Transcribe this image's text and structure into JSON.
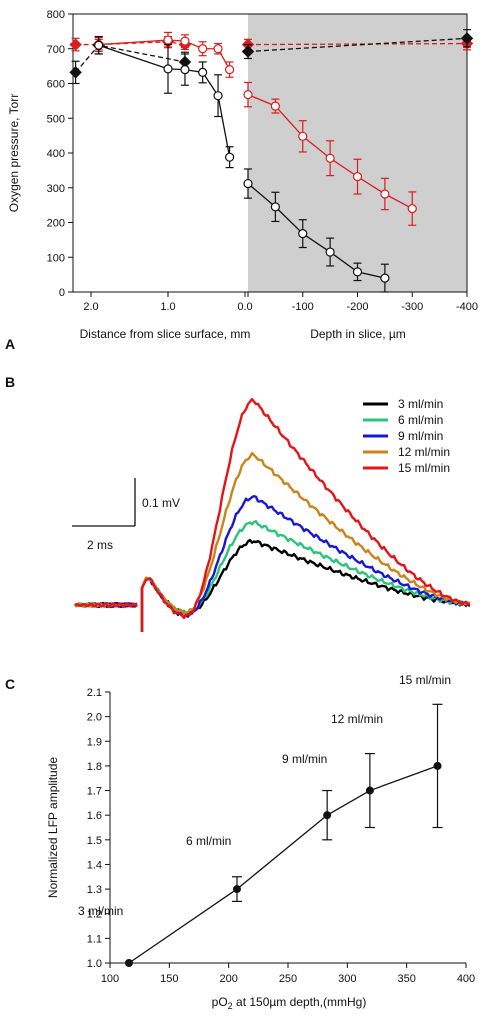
{
  "panels": {
    "a": "A",
    "b": "B",
    "c": "C"
  },
  "chart_data": [
    {
      "panel": "A",
      "type": "line",
      "ylabel": "Oxygen pressure, Torr",
      "ylim": [
        0,
        800
      ],
      "yticks": [
        "0",
        "100",
        "200",
        "300",
        "400",
        "500",
        "600",
        "700",
        "800"
      ],
      "left_axis": {
        "xlabel": "Distance from slice surface, mm",
        "ticks": [
          {
            "v": 2.0,
            "t": "2.0"
          },
          {
            "v": 1.0,
            "t": "1.0"
          },
          {
            "v": 0.0,
            "t": "0.0"
          }
        ],
        "series": [
          {
            "color": "#d81e1e",
            "marker": "diamond",
            "dashed": true,
            "x": [
              2.2,
              1.9,
              1.0,
              0.78
            ],
            "y": [
              712,
              712,
              720,
              712
            ],
            "err": [
              18,
              15,
              15,
              14
            ]
          },
          {
            "color": "#111111",
            "marker": "diamond",
            "dashed": true,
            "x": [
              2.2,
              1.9,
              0.78
            ],
            "y": [
              632,
              710,
              662
            ],
            "err": [
              32,
              25,
              28
            ]
          },
          {
            "color": "#d81e1e",
            "marker": "circle",
            "dashed": false,
            "x": [
              1.9,
              1.0,
              0.78,
              0.55,
              0.35,
              0.2
            ],
            "y": [
              712,
              725,
              722,
              700,
              700,
              640
            ],
            "err": [
              20,
              22,
              18,
              20,
              15,
              22
            ]
          },
          {
            "color": "#111111",
            "marker": "circle",
            "dashed": false,
            "x": [
              1.9,
              1.0,
              0.78,
              0.55,
              0.35,
              0.2
            ],
            "y": [
              710,
              642,
              640,
              632,
              565,
              388
            ],
            "err": [
              25,
              70,
              45,
              30,
              60,
              30
            ]
          }
        ]
      },
      "right_axis": {
        "xlabel": "Depth in slice, µm",
        "ticks": [
          {
            "v": 0,
            "t": "0"
          },
          {
            "v": -100,
            "t": "-100"
          },
          {
            "v": -200,
            "t": "-200"
          },
          {
            "v": -300,
            "t": "-300"
          },
          {
            "v": -400,
            "t": "-400"
          }
        ],
        "shaded": true,
        "series": [
          {
            "color": "#d81e1e",
            "marker": "diamond",
            "dashed": true,
            "x": [
              0,
              -400
            ],
            "y": [
              712,
              715
            ],
            "err": [
              15,
              18
            ]
          },
          {
            "color": "#111111",
            "marker": "diamond",
            "dashed": true,
            "x": [
              0,
              -400
            ],
            "y": [
              692,
              730
            ],
            "err": [
              20,
              25
            ]
          },
          {
            "color": "#d81e1e",
            "marker": "circle",
            "dashed": false,
            "x": [
              0,
              -50,
              -100,
              -150,
              -200,
              -250,
              -300
            ],
            "y": [
              568,
              535,
              448,
              385,
              332,
              282,
              240
            ],
            "err": [
              35,
              20,
              45,
              50,
              50,
              45,
              48
            ]
          },
          {
            "color": "#111111",
            "marker": "circle",
            "dashed": false,
            "x": [
              0,
              -50,
              -100,
              -150,
              -200,
              -250
            ],
            "y": [
              312,
              245,
              168,
              115,
              58,
              40
            ],
            "err": [
              42,
              42,
              40,
              40,
              25,
              40
            ]
          }
        ]
      }
    },
    {
      "panel": "B",
      "type": "line",
      "scalebar": {
        "v_label": "0.1 mV",
        "h_label": "2 ms"
      },
      "legend": [
        "3 ml/min",
        "6 ml/min",
        "9 ml/min",
        "12 ml/min",
        "15 ml/min"
      ],
      "series": [
        {
          "name": "3 ml/min",
          "color": "#000000",
          "trough": 0.22,
          "peak": 0.3
        },
        {
          "name": "6 ml/min",
          "color": "#2bc47a",
          "trough": 0.2,
          "peak": 0.39
        },
        {
          "name": "9 ml/min",
          "color": "#1717d6",
          "trough": 0.27,
          "peak": 0.51
        },
        {
          "name": "12 ml/min",
          "color": "#c9851a",
          "trough": 0.18,
          "peak": 0.71
        },
        {
          "name": "15 ml/min",
          "color": "#e61414",
          "trough": 0.3,
          "peak": 0.97
        }
      ]
    },
    {
      "panel": "C",
      "type": "line",
      "xlabel_main": "pO",
      "xlabel_sub": "2",
      "xlabel_rest": " at 150µm depth,(mmHg)",
      "ylabel": "Normalized LFP amplitude",
      "xlim": [
        100,
        400
      ],
      "ylim": [
        1.0,
        2.1
      ],
      "xticks": [
        "100",
        "150",
        "200",
        "250",
        "300",
        "350",
        "400"
      ],
      "yticks": [
        "1.0",
        "1.1",
        "1.2",
        "1.3",
        "1.4",
        "1.5",
        "1.6",
        "1.7",
        "1.8",
        "1.9",
        "2.0",
        "2.1"
      ],
      "points": [
        {
          "x": 116,
          "y": 1.0,
          "err": 0,
          "label": "3 ml/min"
        },
        {
          "x": 207,
          "y": 1.3,
          "err": 0.05,
          "label": "6 ml/min"
        },
        {
          "x": 283,
          "y": 1.6,
          "err": 0.1,
          "label": "9 ml/min"
        },
        {
          "x": 319,
          "y": 1.7,
          "err": 0.15,
          "label": "12 ml/min"
        },
        {
          "x": 376,
          "y": 1.8,
          "err": 0.25,
          "label": "15 ml/min"
        }
      ]
    }
  ]
}
